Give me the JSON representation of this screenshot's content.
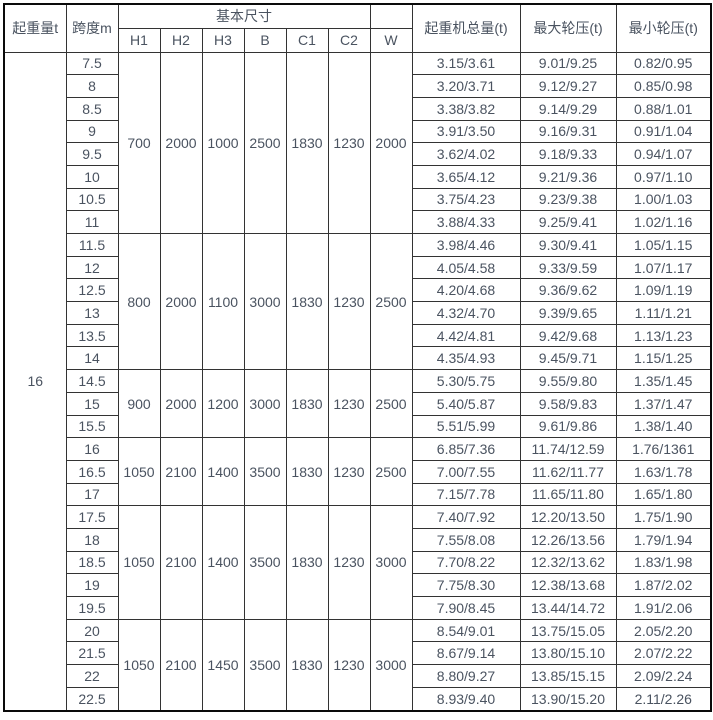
{
  "colors": {
    "outer_border": "#0a0a0a",
    "grid_border": "#333333",
    "text": "#4a5360",
    "background": "#ffffff"
  },
  "table": {
    "header": {
      "capacity_label": "起重量t",
      "span_label": "跨度m",
      "basic_dims_label": "基本尺寸",
      "dim_columns": [
        "H1",
        "H2",
        "H3",
        "B",
        "C1",
        "C2",
        "W"
      ],
      "total_weight_label": "起重机总量(t)",
      "max_wheel_label": "最大轮压(t)",
      "min_wheel_label": "最小轮压(t)"
    },
    "capacity_value": "16",
    "groups": [
      {
        "dims": [
          "700",
          "2000",
          "1000",
          "2500",
          "1830",
          "1230",
          "2000"
        ],
        "rows": [
          {
            "span": "7.5",
            "total": "3.15/3.61",
            "max": "9.01/9.25",
            "min": "0.82/0.95"
          },
          {
            "span": "8",
            "total": "3.20/3.71",
            "max": "9.12/9.27",
            "min": "0.85/0.98"
          },
          {
            "span": "8.5",
            "total": "3.38/3.82",
            "max": "9.14/9.29",
            "min": "0.88/1.01"
          },
          {
            "span": "9",
            "total": "3.91/3.50",
            "max": "9.16/9.31",
            "min": "0.91/1.04"
          },
          {
            "span": "9.5",
            "total": "3.62/4.02",
            "max": "9.18/9.33",
            "min": "0.94/1.07"
          },
          {
            "span": "10",
            "total": "3.65/4.12",
            "max": "9.21/9.36",
            "min": "0.97/1.10"
          },
          {
            "span": "10.5",
            "total": "3.75/4.23",
            "max": "9.23/9.38",
            "min": "1.00/1.03"
          },
          {
            "span": "11",
            "total": "3.88/4.33",
            "max": "9.25/9.41",
            "min": "1.02/1.16"
          }
        ]
      },
      {
        "dims": [
          "800",
          "2000",
          "1100",
          "3000",
          "1830",
          "1230",
          "2500"
        ],
        "rows": [
          {
            "span": "11.5",
            "total": "3.98/4.46",
            "max": "9.30/9.41",
            "min": "1.05/1.15"
          },
          {
            "span": "12",
            "total": "4.05/4.58",
            "max": "9.33/9.59",
            "min": "1.07/1.17"
          },
          {
            "span": "12.5",
            "total": "4.20/4.68",
            "max": "9.36/9.62",
            "min": "1.09/1.19"
          },
          {
            "span": "13",
            "total": "4.32/4.70",
            "max": "9.39/9.65",
            "min": "1.11/1.21"
          },
          {
            "span": "13.5",
            "total": "4.42/4.81",
            "max": "9.42/9.68",
            "min": "1.13/1.23"
          },
          {
            "span": "14",
            "total": "4.35/4.93",
            "max": "9.45/9.71",
            "min": "1.15/1.25"
          }
        ]
      },
      {
        "dims": [
          "900",
          "2000",
          "1200",
          "3000",
          "1830",
          "1230",
          "2500"
        ],
        "rows": [
          {
            "span": "14.5",
            "total": "5.30/5.75",
            "max": "9.55/9.80",
            "min": "1.35/1.45"
          },
          {
            "span": "15",
            "total": "5.40/5.87",
            "max": "9.58/9.83",
            "min": "1.37/1.47"
          },
          {
            "span": "15.5",
            "total": "5.51/5.99",
            "max": "9.61/9.86",
            "min": "1.38/1.40"
          }
        ]
      },
      {
        "dims": [
          "1050",
          "2100",
          "1400",
          "3500",
          "1830",
          "1230",
          "2500"
        ],
        "rows": [
          {
            "span": "16",
            "total": "6.85/7.36",
            "max": "11.74/12.59",
            "min": "1.76/1361"
          },
          {
            "span": "16.5",
            "total": "7.00/7.55",
            "max": "11.62/11.77",
            "min": "1.63/1.78"
          },
          {
            "span": "17",
            "total": "7.15/7.78",
            "max": "11.65/11.80",
            "min": "1.65/1.80"
          }
        ]
      },
      {
        "dims": [
          "1050",
          "2100",
          "1400",
          "3500",
          "1830",
          "1230",
          "3000"
        ],
        "rows": [
          {
            "span": "17.5",
            "total": "7.40/7.92",
            "max": "12.20/13.50",
            "min": "1.75/1.90"
          },
          {
            "span": "18",
            "total": "7.55/8.08",
            "max": "12.26/13.56",
            "min": "1.79/1.94"
          },
          {
            "span": "18.5",
            "total": "7.70/8.22",
            "max": "12.32/13.62",
            "min": "1.83/1.98"
          },
          {
            "span": "19",
            "total": "7.75/8.30",
            "max": "12.38/13.68",
            "min": "1.87/2.02"
          },
          {
            "span": "19.5",
            "total": "7.90/8.45",
            "max": "13.44/14.72",
            "min": "1.91/2.06"
          }
        ]
      },
      {
        "dims": [
          "1050",
          "2100",
          "1450",
          "3500",
          "1830",
          "1230",
          "3000"
        ],
        "rows": [
          {
            "span": "20",
            "total": "8.54/9.01",
            "max": "13.75/15.05",
            "min": "2.05/2.20"
          },
          {
            "span": "21.5",
            "total": "8.67/9.14",
            "max": "13.80/15.10",
            "min": "2.07/2.22"
          },
          {
            "span": "22",
            "total": "8.80/9.27",
            "max": "13.85/15.15",
            "min": "2.09/2.24"
          },
          {
            "span": "22.5",
            "total": "8.93/9.40",
            "max": "13.90/15.20",
            "min": "2.11/2.26"
          }
        ]
      }
    ]
  }
}
